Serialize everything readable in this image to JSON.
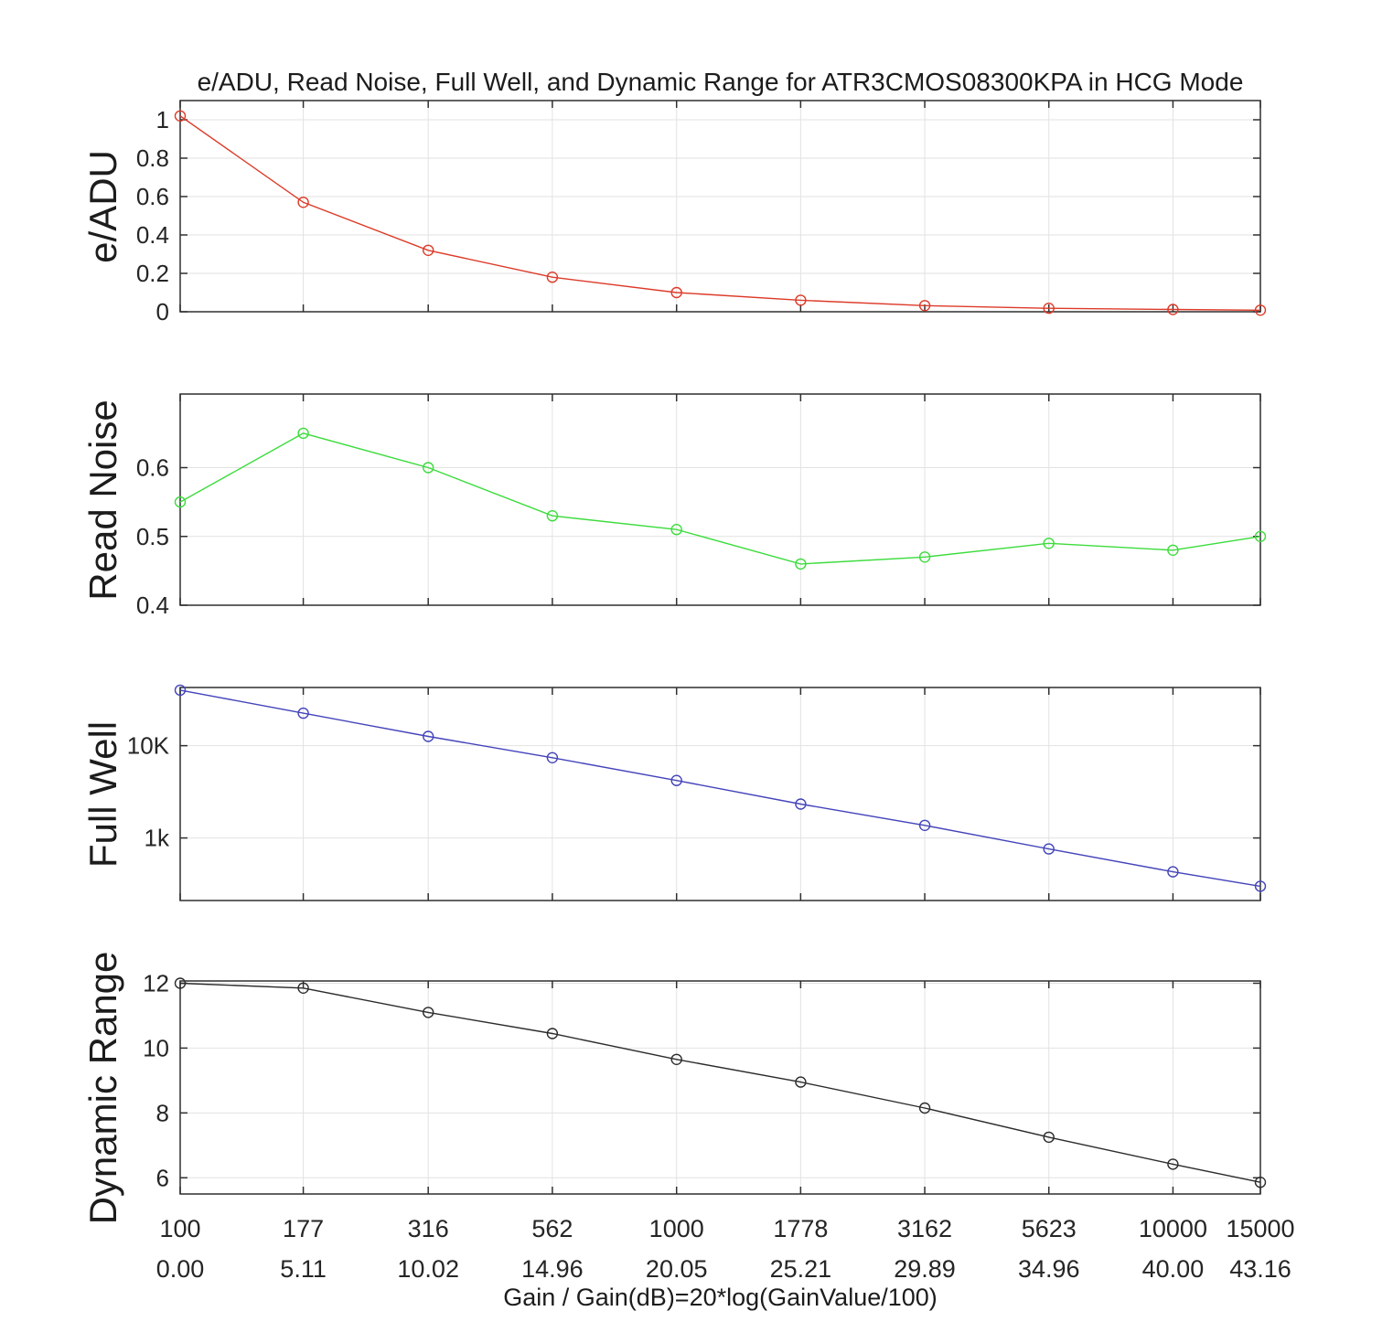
{
  "chart_data": {
    "type": "line",
    "title": "e/ADU, Read Noise, Full Well, and Dynamic Range for ATR3CMOS08300KPA in HCG Mode",
    "xlabel": "Gain / Gain(dB)=20*log(GainValue/100)",
    "x_scale": "log",
    "xlim": [
      100,
      15000
    ],
    "grid": true,
    "legend": "none",
    "x": [
      100,
      177,
      316,
      562,
      1000,
      1778,
      3162,
      5623,
      10000,
      15000
    ],
    "x_tick_labels": [
      "100",
      "177",
      "316",
      "562",
      "1000",
      "1778",
      "3162",
      "5623",
      "10000",
      "15000"
    ],
    "x_tick_labels_db": [
      "0.00",
      "5.11",
      "10.02",
      "14.96",
      "20.05",
      "25.21",
      "29.89",
      "34.96",
      "40.00",
      "43.16"
    ],
    "subplots": [
      {
        "name": "e-adu",
        "ylabel": "e/ADU",
        "color": "#dd3a28",
        "y_scale": "linear",
        "ylim": [
          0,
          1.1
        ],
        "yticks": [
          0,
          0.2,
          0.4,
          0.6,
          0.8,
          1
        ],
        "ytick_labels": [
          "0",
          "0.2",
          "0.4",
          "0.6",
          "0.8",
          "1"
        ],
        "values": [
          1.02,
          0.57,
          0.32,
          0.18,
          0.1,
          0.06,
          0.032,
          0.018,
          0.012,
          0.008
        ]
      },
      {
        "name": "read-noise",
        "ylabel": "Read Noise",
        "color": "#3cdc3c",
        "y_scale": "linear",
        "ylim": [
          0.4,
          0.707
        ],
        "yticks": [
          0.4,
          0.5,
          0.6
        ],
        "ytick_labels": [
          "0.4",
          "0.5",
          "0.6"
        ],
        "values": [
          0.55,
          0.65,
          0.6,
          0.53,
          0.51,
          0.46,
          0.47,
          0.49,
          0.48,
          0.5
        ]
      },
      {
        "name": "full-well",
        "ylabel": "Full Well",
        "color": "#4343bb",
        "y_scale": "log",
        "ylim": [
          210,
          42700
        ],
        "yticks": [
          1000,
          10000
        ],
        "ytick_labels": [
          "1k",
          "10K"
        ],
        "values": [
          40000,
          22500,
          12600,
          7400,
          4200,
          2330,
          1370,
          760,
          430,
          300
        ]
      },
      {
        "name": "dynamic-range",
        "ylabel": "Dynamic Range",
        "color": "#2b2b2b",
        "y_scale": "linear",
        "ylim": [
          5.5,
          12.07
        ],
        "yticks": [
          6,
          8,
          10,
          12
        ],
        "ytick_labels": [
          "6",
          "8",
          "10",
          "12"
        ],
        "values": [
          12.0,
          11.85,
          11.1,
          10.45,
          9.65,
          8.95,
          8.15,
          7.25,
          6.42,
          5.86
        ]
      }
    ],
    "style": {
      "grid_color": "#e2e2e2",
      "axis_color": "#2f2f2f",
      "tick_label_color": "#252525"
    }
  }
}
